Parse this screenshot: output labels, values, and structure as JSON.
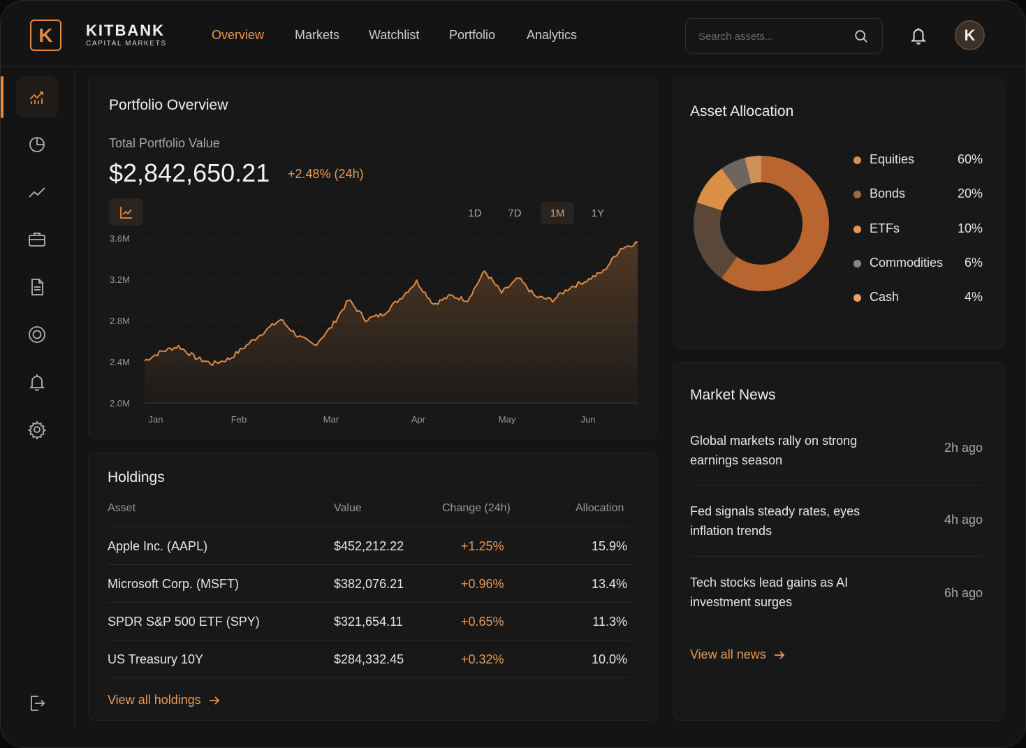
{
  "brand": {
    "logo_letter": "K",
    "name": "KITBANK",
    "subtitle": "CAPITAL MARKETS"
  },
  "nav": [
    {
      "label": "Overview",
      "active": true
    },
    {
      "label": "Markets",
      "active": false
    },
    {
      "label": "Watchlist",
      "active": false
    },
    {
      "label": "Portfolio",
      "active": false
    },
    {
      "label": "Analytics",
      "active": false
    }
  ],
  "search": {
    "placeholder": "Search assets..."
  },
  "user": {
    "avatar_letter": "K"
  },
  "sidebar": {
    "items": [
      "chart-icon",
      "pie-chart-icon",
      "trend-line-icon",
      "briefcase-icon",
      "document-icon",
      "target-icon",
      "bell-icon",
      "gear-icon"
    ],
    "bottom": "logout-icon",
    "active_index": 0
  },
  "portfolio": {
    "title": "Portfolio Overview",
    "value_label": "Total Portfolio Value",
    "value": "$2,842,650.21",
    "change": "+2.48% (24h)",
    "ranges": [
      "1D",
      "7D",
      "1M",
      "1Y"
    ],
    "active_range": "1M"
  },
  "chart_data": {
    "type": "area",
    "title": "",
    "xlabel": "",
    "ylabel": "",
    "y_tick_labels": [
      "3.6M",
      "3.2M",
      "2.8M",
      "2.4M",
      "2.0M"
    ],
    "x_tick_labels": [
      "Jan",
      "Feb",
      "Mar",
      "Apr",
      "May",
      "Jun"
    ],
    "ylim": [
      2000000,
      3600000
    ],
    "grid": true,
    "color": "#e08a44",
    "series": [
      {
        "name": "",
        "values": [
          2410000,
          2500000,
          2550000,
          2440000,
          2380000,
          2430000,
          2560000,
          2690000,
          2810000,
          2650000,
          2560000,
          2740000,
          3000000,
          2810000,
          2860000,
          3010000,
          3180000,
          2960000,
          3040000,
          3000000,
          3280000,
          3070000,
          3210000,
          3030000,
          3000000,
          3120000,
          3190000,
          3280000,
          3500000,
          3560000
        ]
      }
    ]
  },
  "holdings": {
    "title": "Holdings",
    "columns": [
      "Asset",
      "Value",
      "Change (24h)",
      "Allocation"
    ],
    "rows": [
      {
        "asset": "Apple Inc. (AAPL)",
        "value": "$452,212.22",
        "change": "+1.25%",
        "allocation": "15.9%"
      },
      {
        "asset": "Microsoft Corp. (MSFT)",
        "value": "$382,076.21",
        "change": "+0.96%",
        "allocation": "13.4%"
      },
      {
        "asset": "SPDR S&P 500 ETF (SPY)",
        "value": "$321,654.11",
        "change": "+0.65%",
        "allocation": "11.3%"
      },
      {
        "asset": "US Treasury 10Y",
        "value": "$284,332.45",
        "change": "+0.32%",
        "allocation": "10.0%"
      }
    ],
    "view_all": "View all holdings"
  },
  "allocation": {
    "title": "Asset Allocation",
    "items": [
      {
        "name": "Equities",
        "value": "60%",
        "percent": 60,
        "color": "#b8652f"
      },
      {
        "name": "Bonds",
        "value": "20%",
        "percent": 20,
        "color": "#5a4738"
      },
      {
        "name": "ETFs",
        "value": "10%",
        "percent": 10,
        "color": "#d98f45"
      },
      {
        "name": "Commodities",
        "value": "6%",
        "percent": 6,
        "color": "#6e6560"
      },
      {
        "name": "Cash",
        "value": "4%",
        "percent": 4,
        "color": "#cf9055"
      }
    ]
  },
  "news": {
    "title": "Market News",
    "items": [
      {
        "headline": "Global markets rally on strong earnings season",
        "time": "2h ago"
      },
      {
        "headline": "Fed signals steady rates, eyes inflation trends",
        "time": "4h ago"
      },
      {
        "headline": "Tech stocks lead gains as AI investment surges",
        "time": "6h ago"
      }
    ],
    "view_all": "View all news"
  }
}
